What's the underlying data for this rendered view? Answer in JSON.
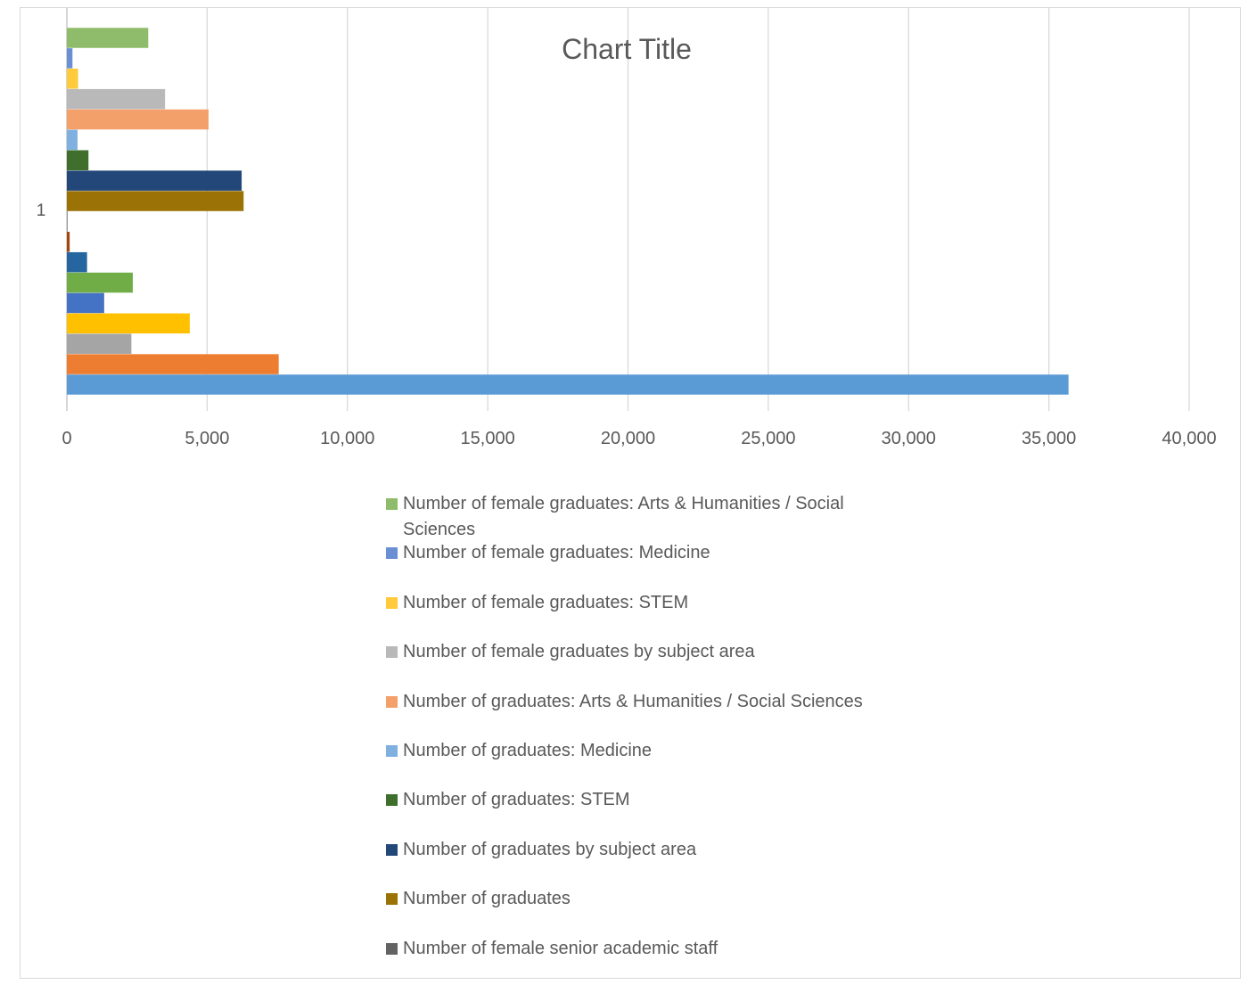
{
  "chart_data": {
    "type": "bar",
    "orientation": "horizontal",
    "title": "Chart Title",
    "categories": [
      "1"
    ],
    "xlim": [
      0,
      40000
    ],
    "x_ticks": [
      "0",
      "5,000",
      "10,000",
      "15,000",
      "20,000",
      "25,000",
      "30,000",
      "35,000",
      "40,000"
    ],
    "x_tick_values": [
      0,
      5000,
      10000,
      15000,
      20000,
      25000,
      30000,
      35000,
      40000
    ],
    "grid": true,
    "legend_position": "bottom",
    "series": [
      {
        "name": "Number of female graduates: Arts & Humanities / Social Sciences",
        "values": [
          2900
        ],
        "color": "#8fbc6a"
      },
      {
        "name": "Number of female graduates: Medicine",
        "values": [
          200
        ],
        "color": "#6b8fd4"
      },
      {
        "name": "Number of female graduates: STEM",
        "values": [
          400
        ],
        "color": "#ffcb3a"
      },
      {
        "name": "Number of female graduates by subject area",
        "values": [
          3500
        ],
        "color": "#b9b9b9"
      },
      {
        "name": "Number of graduates: Arts & Humanities / Social Sciences",
        "values": [
          5050
        ],
        "color": "#f4a06a"
      },
      {
        "name": "Number of graduates: Medicine",
        "values": [
          380
        ],
        "color": "#7fb0e0"
      },
      {
        "name": "Number of graduates: STEM",
        "values": [
          770
        ],
        "color": "#3f6e2d"
      },
      {
        "name": "Number of graduates by subject area",
        "values": [
          6230
        ],
        "color": "#24477a"
      },
      {
        "name": "Number of graduates",
        "values": [
          6300
        ],
        "color": "#9a7205"
      },
      {
        "name": "Number of female senior academic staff",
        "values": [
          20
        ],
        "color": "#636363"
      },
      {
        "name": "",
        "values": [
          100
        ],
        "color": "#9e480e"
      },
      {
        "name": "",
        "values": [
          720
        ],
        "color": "#2666a0"
      },
      {
        "name": "",
        "values": [
          2350
        ],
        "color": "#70ad47"
      },
      {
        "name": "",
        "values": [
          1330
        ],
        "color": "#4472c4"
      },
      {
        "name": "",
        "values": [
          4380
        ],
        "color": "#ffc000"
      },
      {
        "name": "",
        "values": [
          2300
        ],
        "color": "#a5a5a5"
      },
      {
        "name": "",
        "values": [
          7550
        ],
        "color": "#ed7d31"
      },
      {
        "name": "",
        "values": [
          35700
        ],
        "color": "#5b9bd5"
      }
    ]
  }
}
